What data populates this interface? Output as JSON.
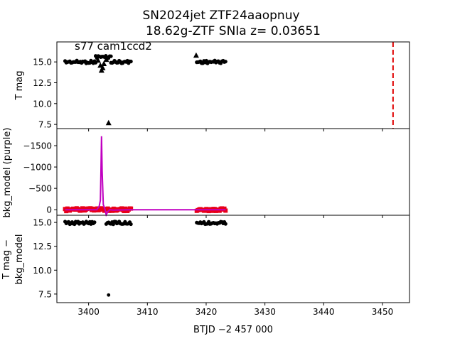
{
  "title_line1": "SN2024jet  ZTF24aaopnuy",
  "title_line2": "18.62g-ZTF SNIa z= 0.03651",
  "chart_data": [
    {
      "type": "scatter",
      "panel": "top",
      "ylabel": "T mag",
      "annotation": "s77 cam1ccd2",
      "xlim": [
        3394.6,
        3454.6
      ],
      "ylim": [
        17.4,
        7.0
      ],
      "yticks": [
        7.5,
        10.0,
        12.5,
        15.0
      ],
      "ytick_labels": [
        "7.5",
        "10.0",
        "12.5",
        "15.0"
      ],
      "vline_x": 3451.8,
      "series": [
        {
          "marker": "dot",
          "color": "#000000",
          "segments": [
            [
              3396.0,
              3401.2,
              15.0
            ],
            [
              3401.2,
              3403.8,
              15.6
            ],
            [
              3403.8,
              3407.2,
              15.0
            ],
            [
              3418.4,
              3423.3,
              15.0
            ]
          ]
        },
        {
          "marker": "triangle",
          "color": "#000000",
          "points": [
            [
              3401.6,
              15.2
            ],
            [
              3402.0,
              14.6
            ],
            [
              3402.2,
              14.0
            ],
            [
              3402.4,
              14.3
            ],
            [
              3402.6,
              14.8
            ],
            [
              3403.0,
              15.3
            ],
            [
              3403.4,
              7.7
            ],
            [
              3418.3,
              15.8
            ]
          ]
        }
      ]
    },
    {
      "type": "line",
      "panel": "middle",
      "ylabel": "bkg_model (purple)",
      "xlim": [
        3394.6,
        3454.6
      ],
      "ylim": [
        -1900,
        130
      ],
      "yticks": [
        0,
        -500,
        -1000,
        -1500
      ],
      "ytick_labels": [
        "0",
        "−500",
        "−1000",
        "−1500"
      ],
      "series": [
        {
          "color": "#e8001a",
          "style": "dots",
          "segments": [
            [
              3396.0,
              3407.2,
              0
            ],
            [
              3418.4,
              3423.3,
              0
            ]
          ]
        },
        {
          "color": "#c000c0",
          "style": "line",
          "x": [
            3396.0,
            3401.4,
            3401.8,
            3402.0,
            3402.1,
            3402.2,
            3402.3,
            3402.5,
            3402.8,
            3403.0,
            3403.3,
            3403.6,
            3404.2,
            3407.2,
            3418.4,
            3423.3
          ],
          "y": [
            0,
            0,
            -80,
            -220,
            -900,
            -1720,
            -900,
            -120,
            0,
            120,
            40,
            0,
            10,
            0,
            0,
            0
          ]
        }
      ]
    },
    {
      "type": "scatter",
      "panel": "bottom",
      "ylabel_line1": "T mag −",
      "ylabel_line2": "bkg_model",
      "xlabel": "BTJD −2 457 000",
      "xlim": [
        3394.6,
        3454.6
      ],
      "ylim": [
        15.75,
        6.6
      ],
      "xticks": [
        3400,
        3410,
        3420,
        3430,
        3440,
        3450
      ],
      "xtick_labels": [
        "3400",
        "3410",
        "3420",
        "3430",
        "3440",
        "3450"
      ],
      "yticks": [
        7.5,
        10.0,
        12.5,
        15.0
      ],
      "ytick_labels": [
        "7.5",
        "10.0",
        "12.5",
        "15.0"
      ],
      "series": [
        {
          "marker": "dot",
          "color": "#000000",
          "segments": [
            [
              3396.0,
              3401.0,
              14.95
            ],
            [
              3403.0,
              3407.2,
              14.95
            ],
            [
              3418.4,
              3423.3,
              14.95
            ]
          ],
          "points": [
            [
              3403.4,
              7.4
            ]
          ]
        }
      ]
    }
  ]
}
